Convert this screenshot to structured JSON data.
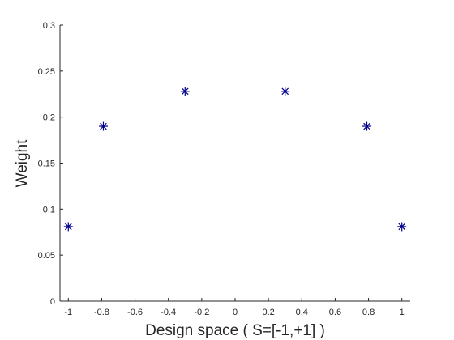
{
  "chart_data": {
    "type": "scatter",
    "title": "",
    "xlabel": "Design space ( S=[-1,+1] )",
    "ylabel": "Weight",
    "xlim": [
      -1.05,
      1.05
    ],
    "ylim": [
      0,
      0.3
    ],
    "xticks": [
      -1,
      -0.8,
      -0.6,
      -0.4,
      -0.2,
      0,
      0.2,
      0.4,
      0.6,
      0.8,
      1
    ],
    "xtick_labels": [
      "-1",
      "-0.8",
      "-0.6",
      "-0.4",
      "-0.2",
      "0",
      "0.2",
      "0.4",
      "0.6",
      "0.8",
      "1"
    ],
    "yticks": [
      0,
      0.05,
      0.1,
      0.15,
      0.2,
      0.25,
      0.3
    ],
    "ytick_labels": [
      "0",
      "0.05",
      "0.1",
      "0.15",
      "0.2",
      "0.25",
      "0.3"
    ],
    "grid": false,
    "marker": "asterisk",
    "marker_color": "#00008b",
    "axis_color": "#262626",
    "series": [
      {
        "x": [
          -1,
          -0.79,
          -0.3,
          0.3,
          0.79,
          1
        ],
        "y": [
          0.081,
          0.19,
          0.228,
          0.228,
          0.19,
          0.081
        ]
      }
    ]
  }
}
